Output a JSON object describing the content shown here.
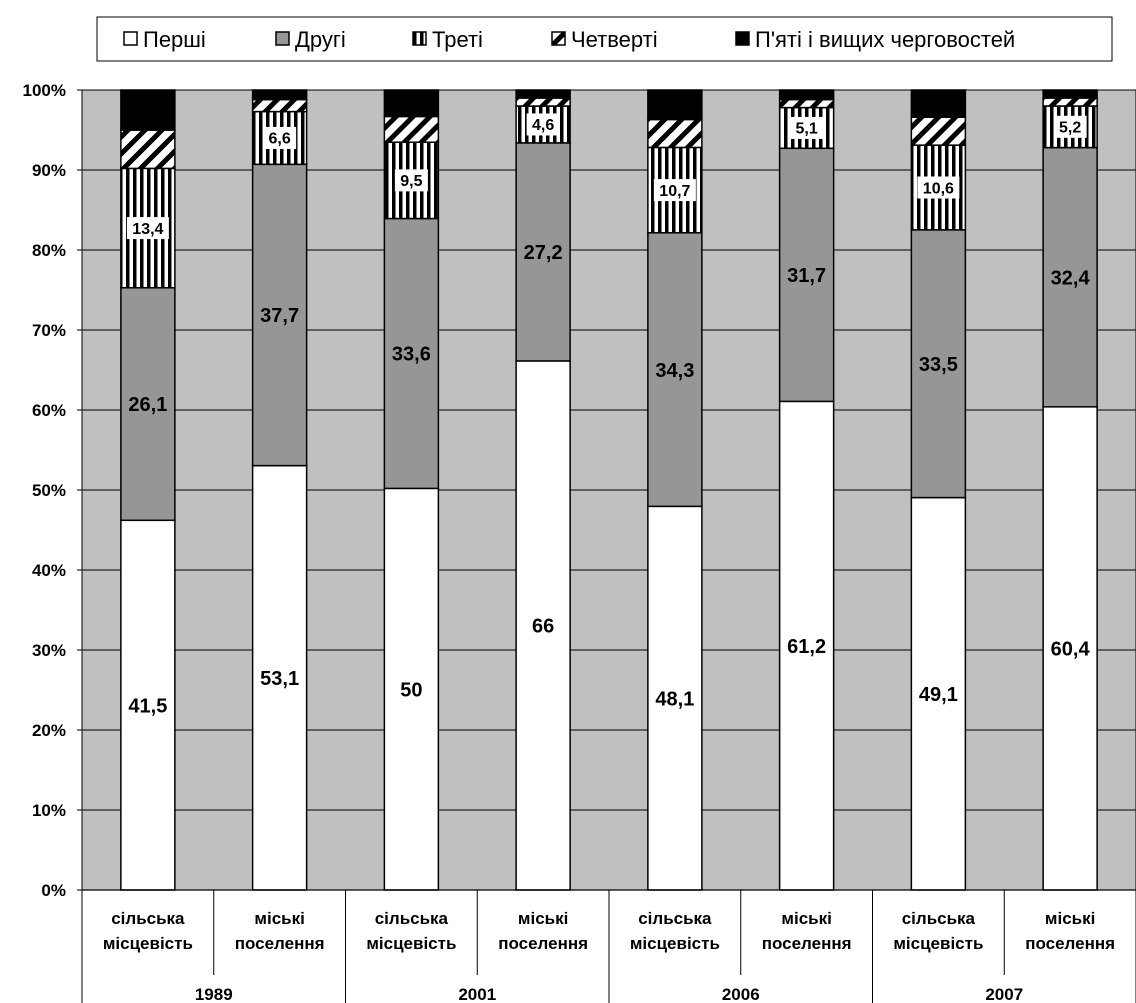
{
  "chart_data": {
    "type": "bar",
    "stacked": "percent",
    "categories": [
      "сільська місцевість",
      "міські поселення",
      "сільська місцевість",
      "міські поселення",
      "сільська місцевість",
      "міські поселення",
      "сільська місцевість",
      "міські поселення"
    ],
    "category_lines": [
      [
        "сільська",
        "місцевість"
      ],
      [
        "міські",
        "поселення"
      ],
      [
        "сільська",
        "місцевість"
      ],
      [
        "міські",
        "поселення"
      ],
      [
        "сільська",
        "місцевість"
      ],
      [
        "міські",
        "поселення"
      ],
      [
        "сільська",
        "місцевість"
      ],
      [
        "міські",
        "поселення"
      ]
    ],
    "groups": [
      "1989",
      "2001",
      "2006",
      "2007"
    ],
    "series": [
      {
        "name": "Перші",
        "values": [
          41.5,
          53.1,
          50,
          66,
          48.1,
          61.2,
          49.1,
          60.4
        ],
        "labels": [
          "41,5",
          "53,1",
          "50",
          "66",
          "48,1",
          "61,2",
          "49,1",
          "60,4"
        ],
        "fill": "#ffffff",
        "pattern": "solid"
      },
      {
        "name": "Другі",
        "values": [
          26.1,
          37.7,
          33.6,
          27.2,
          34.3,
          31.7,
          33.5,
          32.4
        ],
        "labels": [
          "26,1",
          "37,7",
          "33,6",
          "27,2",
          "34,3",
          "31,7",
          "33,5",
          "32,4"
        ],
        "fill": "#969696",
        "pattern": "solid"
      },
      {
        "name": "Треті",
        "values": [
          13.4,
          6.6,
          9.5,
          4.6,
          10.7,
          5.1,
          10.6,
          5.2
        ],
        "labels": [
          "13,4",
          "6,6",
          "9,5",
          "4,6",
          "10,7",
          "5,1",
          "10,6",
          "5,2"
        ],
        "fill": "#ffffff",
        "pattern": "vertical"
      },
      {
        "name": "Четверті",
        "values": [
          4.3,
          1.5,
          3.2,
          1.0,
          3.5,
          1.0,
          3.5,
          1.0
        ],
        "fill": "#ffffff",
        "pattern": "diagonal"
      },
      {
        "name": "П'яті і вищих черговостей",
        "values": [
          4.5,
          1.2,
          3.3,
          1.0,
          3.7,
          1.2,
          3.4,
          1.0
        ],
        "fill": "#000000",
        "pattern": "solid"
      }
    ],
    "y_ticks": [
      "0%",
      "10%",
      "20%",
      "30%",
      "40%",
      "50%",
      "60%",
      "70%",
      "80%",
      "90%",
      "100%"
    ],
    "ylim": [
      0,
      100
    ],
    "legend_position": "top",
    "plot_background": "#c0c0c0",
    "grid": true
  }
}
